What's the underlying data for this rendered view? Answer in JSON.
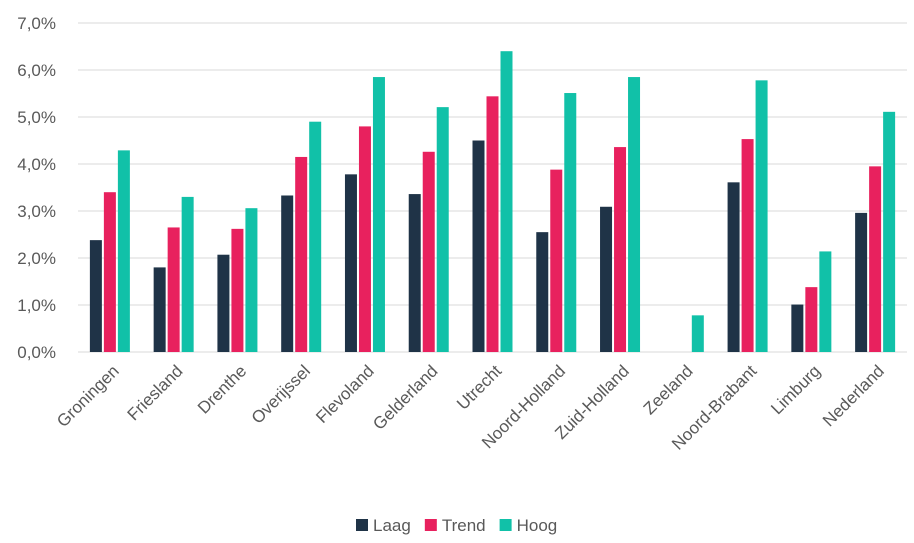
{
  "chart_data": {
    "type": "bar",
    "categories": [
      "Groningen",
      "Friesland",
      "Drenthe",
      "Overijssel",
      "Flevoland",
      "Gelderland",
      "Utrecht",
      "Noord-Holland",
      "Zuid-Holland",
      "Zeeland",
      "Noord-Brabant",
      "Limburg",
      "Nederland"
    ],
    "series": [
      {
        "name": "Laag",
        "color": "#1f3347",
        "values": [
          2.38,
          1.8,
          2.07,
          3.33,
          3.78,
          3.36,
          4.5,
          2.55,
          3.09,
          null,
          3.61,
          1.01,
          2.96
        ]
      },
      {
        "name": "Trend",
        "color": "#e8215e",
        "values": [
          3.4,
          2.65,
          2.62,
          4.15,
          4.8,
          4.26,
          5.44,
          3.88,
          4.36,
          null,
          4.53,
          1.38,
          3.95
        ]
      },
      {
        "name": "Hoog",
        "color": "#11c1a8",
        "values": [
          4.29,
          3.3,
          3.06,
          4.9,
          5.85,
          5.21,
          6.4,
          5.51,
          5.85,
          0.78,
          5.78,
          2.14,
          5.11
        ]
      }
    ],
    "ylim": [
      0,
      7
    ],
    "yticks": [
      "0,0%",
      "1,0%",
      "2,0%",
      "3,0%",
      "4,0%",
      "5,0%",
      "6,0%",
      "7,0%"
    ],
    "grid": true,
    "legend_position": "bottom",
    "title": "",
    "xlabel": "",
    "ylabel": ""
  }
}
